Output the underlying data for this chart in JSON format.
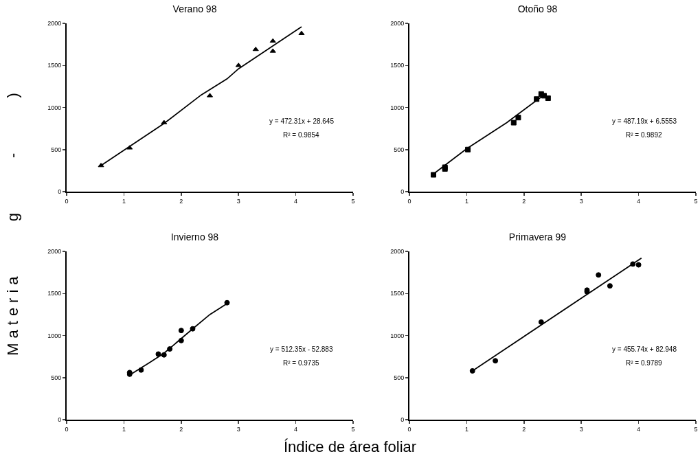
{
  "chart_data": [
    {
      "type": "scatter",
      "title": "Verano 98",
      "xlim": [
        0,
        5
      ],
      "xticks": [
        0,
        1,
        2,
        3,
        4,
        5
      ],
      "ylim": [
        0,
        2000
      ],
      "yticks": [
        0,
        500,
        1000,
        1500,
        2000
      ],
      "grid": false,
      "x": [
        0.6,
        1.1,
        1.7,
        2.5,
        3.0,
        3.3,
        3.6,
        3.6,
        4.1
      ],
      "series": [
        {
          "color": "#000000",
          "marker": "triangle",
          "values": [
            310,
            520,
            820,
            1140,
            1500,
            1690,
            1790,
            1670,
            1880
          ]
        },
        {
          "type": "line",
          "color": "#000000",
          "x": [
            0.6,
            1.7,
            2.35,
            2.8,
            3.0,
            4.1
          ],
          "values": [
            310,
            810,
            1150,
            1340,
            1460,
            1960
          ]
        }
      ],
      "annotations": [
        "y = 472.31x + 28.645",
        "R² = 0.9854"
      ]
    },
    {
      "type": "scatter",
      "title": "Otoño 98",
      "xlim": [
        0,
        5
      ],
      "xticks": [
        0,
        1,
        2,
        3,
        4,
        5
      ],
      "ylim": [
        0,
        2000
      ],
      "yticks": [
        0,
        500,
        1000,
        1500,
        2000
      ],
      "grid": false,
      "x": [
        0.42,
        0.62,
        0.62,
        1.02,
        1.82,
        1.9,
        2.22,
        2.3,
        2.35,
        2.42
      ],
      "series": [
        {
          "color": "#000000",
          "marker": "square",
          "values": [
            200,
            270,
            290,
            500,
            820,
            880,
            1100,
            1160,
            1140,
            1110
          ]
        },
        {
          "type": "line",
          "color": "#000000",
          "x": [
            0.42,
            1.0,
            1.7,
            2.25,
            2.38
          ],
          "values": [
            210,
            510,
            820,
            1100,
            1160
          ]
        }
      ],
      "annotations": [
        "y = 487.19x + 6.5553",
        "R² = 0.9892"
      ]
    },
    {
      "type": "scatter",
      "title": "Invierno 98",
      "xlim": [
        0,
        5
      ],
      "xticks": [
        0,
        1,
        2,
        3,
        4,
        5
      ],
      "ylim": [
        0,
        2000
      ],
      "yticks": [
        0,
        500,
        1000,
        1500,
        2000
      ],
      "grid": false,
      "xlabel": "Índice de área foliar",
      "ylabel": "Materia g - )",
      "x": [
        1.1,
        1.1,
        1.3,
        1.6,
        1.7,
        1.8,
        2.0,
        2.0,
        2.2,
        2.8
      ],
      "series": [
        {
          "color": "#000000",
          "marker": "circle",
          "values": [
            560,
            540,
            590,
            780,
            770,
            840,
            1060,
            940,
            1080,
            1390
          ]
        },
        {
          "type": "line",
          "color": "#000000",
          "x": [
            1.1,
            1.45,
            1.7,
            2.2,
            2.5,
            2.8
          ],
          "values": [
            530,
            680,
            790,
            1080,
            1250,
            1380
          ]
        }
      ],
      "annotations": [
        "y = 512.35x - 52.883",
        "R² = 0.9735"
      ]
    },
    {
      "type": "scatter",
      "title": "Primavera 99",
      "xlim": [
        0,
        5
      ],
      "xticks": [
        0,
        1,
        2,
        3,
        4,
        5
      ],
      "ylim": [
        0,
        2000
      ],
      "yticks": [
        0,
        500,
        1000,
        1500,
        2000
      ],
      "grid": false,
      "x": [
        1.1,
        1.5,
        2.3,
        3.1,
        3.1,
        3.3,
        3.5,
        3.9,
        4.0
      ],
      "series": [
        {
          "color": "#000000",
          "marker": "circle",
          "values": [
            580,
            700,
            1160,
            1540,
            1520,
            1720,
            1590,
            1850,
            1840
          ]
        },
        {
          "type": "line",
          "color": "#000000",
          "x": [
            1.1,
            4.05
          ],
          "values": [
            580,
            1920
          ]
        }
      ],
      "annotations": [
        "y = 455.74x + 82.948",
        "R² = 0.9789"
      ]
    }
  ]
}
